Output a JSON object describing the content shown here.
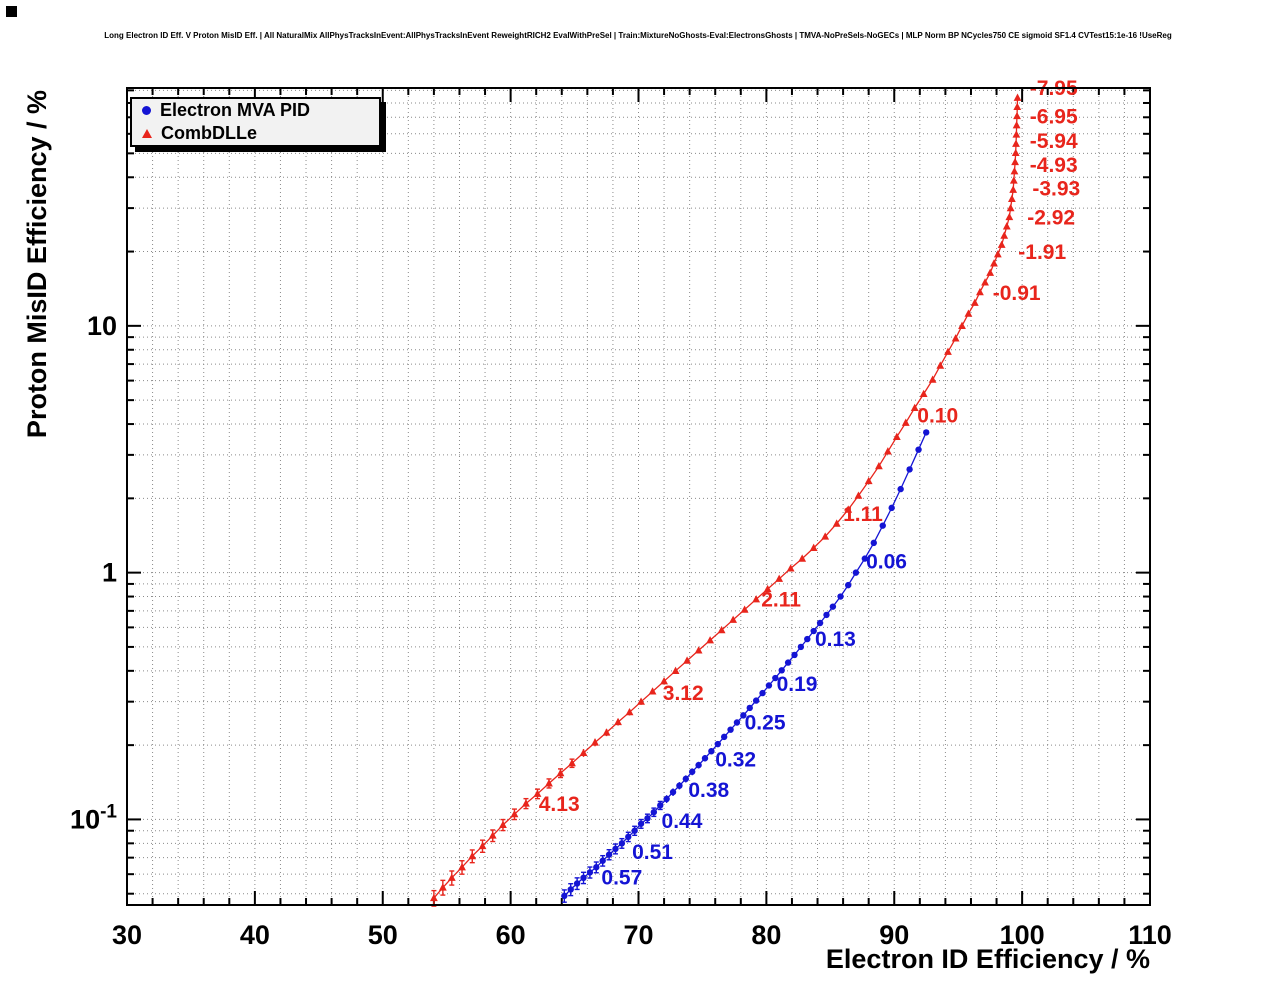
{
  "chart_data": {
    "type": "scatter",
    "title": "Long Electron ID Eff. V Proton MisID Eff. | All NaturalMix AllPhysTracksInEvent:AllPhysTracksInEvent ReweightRICH2 EvalWithPreSel | Train:MixtureNoGhosts-Eval:ElectronsGhosts | TMVA-NoPreSels-NoGECs | MLP Norm BP NCycles750 CE sigmoid SF1.4 CVTest15:1e-16 !UseReg",
    "xlabel": "Electron ID Efficiency / %",
    "ylabel": "Proton MisID Efficiency / %",
    "xscale": "linear",
    "yscale": "log",
    "xlim": [
      30,
      110
    ],
    "ylim": [
      0.045,
      92
    ],
    "x_major_ticks": [
      30,
      40,
      50,
      60,
      70,
      80,
      90,
      100,
      110
    ],
    "y_major_ticks": [
      {
        "v": 0.1,
        "text": "10",
        "sup": "-1"
      },
      {
        "v": 1,
        "text": "1"
      },
      {
        "v": 10,
        "text": "10"
      }
    ],
    "grid": {
      "style": "dotted",
      "color": "#8a8a8a",
      "x_step": 2
    },
    "legend": {
      "position": "top-left",
      "entries": [
        {
          "label": "Electron MVA PID",
          "marker": "circle",
          "color": "#1414d4"
        },
        {
          "label": "CombDLLe",
          "marker": "triangle",
          "color": "#e8251c"
        }
      ]
    },
    "series": [
      {
        "name": "CombDLLe",
        "marker": "triangle",
        "color": "#e8251c",
        "rel_err_base": 0.05,
        "points": [
          [
            54.0,
            0.048
          ],
          [
            54.7,
            0.053
          ],
          [
            55.4,
            0.058
          ],
          [
            56.2,
            0.064
          ],
          [
            57.0,
            0.071
          ],
          [
            57.8,
            0.078
          ],
          [
            58.6,
            0.086
          ],
          [
            59.4,
            0.095
          ],
          [
            60.3,
            0.105
          ],
          [
            61.2,
            0.116
          ],
          [
            62.1,
            0.127
          ],
          [
            63.0,
            0.14
          ],
          [
            63.9,
            0.154
          ],
          [
            64.8,
            0.169
          ],
          [
            65.7,
            0.186
          ],
          [
            66.6,
            0.205
          ],
          [
            67.5,
            0.225
          ],
          [
            68.4,
            0.248
          ],
          [
            69.3,
            0.272
          ],
          [
            70.2,
            0.3
          ],
          [
            71.1,
            0.33
          ],
          [
            72.0,
            0.363
          ],
          [
            72.9,
            0.4
          ],
          [
            73.8,
            0.44
          ],
          [
            74.7,
            0.484
          ],
          [
            75.6,
            0.532
          ],
          [
            76.5,
            0.585
          ],
          [
            77.4,
            0.644
          ],
          [
            78.3,
            0.708
          ],
          [
            79.2,
            0.78
          ],
          [
            80.1,
            0.858
          ],
          [
            81.0,
            0.944
          ],
          [
            81.9,
            1.04
          ],
          [
            82.8,
            1.14
          ],
          [
            83.7,
            1.26
          ],
          [
            84.6,
            1.4
          ],
          [
            85.5,
            1.58
          ],
          [
            86.4,
            1.8
          ],
          [
            87.2,
            2.05
          ],
          [
            88.0,
            2.35
          ],
          [
            88.8,
            2.7
          ],
          [
            89.5,
            3.1
          ],
          [
            90.2,
            3.55
          ],
          [
            90.9,
            4.05
          ],
          [
            91.6,
            4.65
          ],
          [
            92.3,
            5.3
          ],
          [
            93.0,
            6.05
          ],
          [
            93.6,
            6.9
          ],
          [
            94.2,
            7.85
          ],
          [
            94.8,
            8.9
          ],
          [
            95.3,
            10.0
          ],
          [
            95.8,
            11.2
          ],
          [
            96.3,
            12.4
          ],
          [
            96.7,
            13.7
          ],
          [
            97.1,
            15.0
          ],
          [
            97.5,
            16.4
          ],
          [
            97.8,
            17.9
          ],
          [
            98.1,
            19.5
          ],
          [
            98.4,
            21.3
          ],
          [
            98.6,
            23.2
          ],
          [
            98.8,
            25.3
          ],
          [
            99.0,
            27.6
          ],
          [
            99.1,
            30.0
          ],
          [
            99.2,
            32.7
          ],
          [
            99.3,
            35.6
          ],
          [
            99.35,
            38.8
          ],
          [
            99.4,
            42.3
          ],
          [
            99.45,
            46.1
          ],
          [
            99.5,
            50.2
          ],
          [
            99.52,
            54.7
          ],
          [
            99.55,
            59.6
          ],
          [
            99.57,
            65.0
          ],
          [
            99.6,
            70.8
          ],
          [
            99.62,
            77.1
          ],
          [
            99.64,
            84.0
          ]
        ]
      },
      {
        "name": "Electron MVA PID",
        "marker": "circle",
        "color": "#1414d4",
        "rel_err_base": 0.04,
        "points": [
          [
            64.2,
            0.049
          ],
          [
            64.7,
            0.052
          ],
          [
            65.2,
            0.055
          ],
          [
            65.7,
            0.058
          ],
          [
            66.2,
            0.061
          ],
          [
            66.7,
            0.064
          ],
          [
            67.2,
            0.068
          ],
          [
            67.7,
            0.072
          ],
          [
            68.2,
            0.076
          ],
          [
            68.7,
            0.08
          ],
          [
            69.2,
            0.085
          ],
          [
            69.7,
            0.09
          ],
          [
            70.2,
            0.096
          ],
          [
            70.7,
            0.101
          ],
          [
            71.2,
            0.107
          ],
          [
            71.7,
            0.114
          ],
          [
            72.2,
            0.121
          ],
          [
            72.7,
            0.129
          ],
          [
            73.2,
            0.137
          ],
          [
            73.7,
            0.146
          ],
          [
            74.2,
            0.156
          ],
          [
            74.7,
            0.166
          ],
          [
            75.2,
            0.177
          ],
          [
            75.7,
            0.189
          ],
          [
            76.2,
            0.202
          ],
          [
            76.7,
            0.216
          ],
          [
            77.2,
            0.231
          ],
          [
            77.7,
            0.247
          ],
          [
            78.2,
            0.264
          ],
          [
            78.7,
            0.283
          ],
          [
            79.2,
            0.303
          ],
          [
            79.7,
            0.325
          ],
          [
            80.2,
            0.349
          ],
          [
            80.7,
            0.374
          ],
          [
            81.2,
            0.402
          ],
          [
            81.7,
            0.432
          ],
          [
            82.2,
            0.464
          ],
          [
            82.7,
            0.5
          ],
          [
            83.2,
            0.538
          ],
          [
            83.7,
            0.58
          ],
          [
            84.2,
            0.625
          ],
          [
            84.7,
            0.674
          ],
          [
            85.2,
            0.728
          ],
          [
            85.8,
            0.8
          ],
          [
            86.4,
            0.89
          ],
          [
            87.0,
            1.0
          ],
          [
            87.7,
            1.14
          ],
          [
            88.4,
            1.32
          ],
          [
            89.1,
            1.55
          ],
          [
            89.8,
            1.83
          ],
          [
            90.5,
            2.18
          ],
          [
            91.2,
            2.62
          ],
          [
            91.9,
            3.15
          ],
          [
            92.5,
            3.7
          ]
        ]
      }
    ],
    "annotations": [
      {
        "text": "-7.95",
        "x": 100.6,
        "y": 86,
        "color": "#e8251c"
      },
      {
        "text": "-6.95",
        "x": 100.6,
        "y": 66,
        "color": "#e8251c"
      },
      {
        "text": "-5.94",
        "x": 100.6,
        "y": 52.5,
        "color": "#e8251c"
      },
      {
        "text": "-4.93",
        "x": 100.6,
        "y": 42,
        "color": "#e8251c"
      },
      {
        "text": "-3.93",
        "x": 100.8,
        "y": 33.8,
        "color": "#e8251c"
      },
      {
        "text": "-2.92",
        "x": 100.4,
        "y": 25.8,
        "color": "#e8251c"
      },
      {
        "text": "-1.91",
        "x": 99.7,
        "y": 18.7,
        "color": "#e8251c"
      },
      {
        "text": "-0.91",
        "x": 97.7,
        "y": 12.7,
        "color": "#e8251c"
      },
      {
        "text": "0.10",
        "x": 91.8,
        "y": 4.05,
        "color": "#e8251c"
      },
      {
        "text": "1.11",
        "x": 86.0,
        "y": 1.62,
        "color": "#e8251c"
      },
      {
        "text": "2.11",
        "x": 79.6,
        "y": 0.73,
        "color": "#e8251c"
      },
      {
        "text": "3.12",
        "x": 71.9,
        "y": 0.305,
        "color": "#e8251c"
      },
      {
        "text": "4.13",
        "x": 62.2,
        "y": 0.108,
        "color": "#e8251c"
      },
      {
        "text": "0.06",
        "x": 87.8,
        "y": 1.04,
        "color": "#1414d4"
      },
      {
        "text": "0.13",
        "x": 83.8,
        "y": 0.505,
        "color": "#1414d4"
      },
      {
        "text": "0.19",
        "x": 80.8,
        "y": 0.332,
        "color": "#1414d4"
      },
      {
        "text": "0.25",
        "x": 78.3,
        "y": 0.231,
        "color": "#1414d4"
      },
      {
        "text": "0.32",
        "x": 76.0,
        "y": 0.164,
        "color": "#1414d4"
      },
      {
        "text": "0.38",
        "x": 73.9,
        "y": 0.123,
        "color": "#1414d4"
      },
      {
        "text": "0.44",
        "x": 71.8,
        "y": 0.0925,
        "color": "#1414d4"
      },
      {
        "text": "0.51",
        "x": 69.5,
        "y": 0.069,
        "color": "#1414d4"
      },
      {
        "text": "0.57",
        "x": 67.1,
        "y": 0.0545,
        "color": "#1414d4"
      }
    ]
  }
}
